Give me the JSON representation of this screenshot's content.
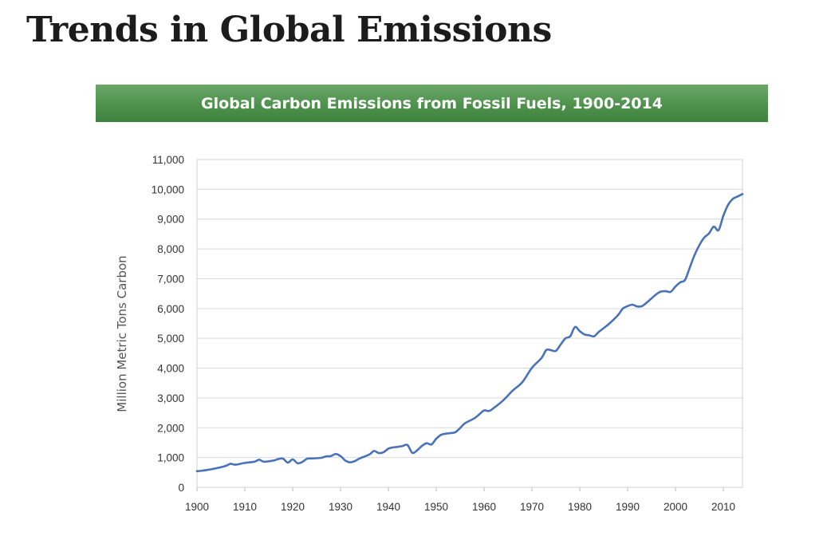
{
  "page": {
    "title": "Trends in Global Emissions"
  },
  "chart_data": {
    "type": "line",
    "title": "Global Carbon Emissions from Fossil Fuels, 1900-2014",
    "xlabel": "",
    "ylabel": "Million Metric Tons Carbon",
    "xlim": [
      1900,
      2014
    ],
    "ylim": [
      0,
      11000
    ],
    "x_ticks": [
      1900,
      1910,
      1920,
      1930,
      1940,
      1950,
      1960,
      1970,
      1980,
      1990,
      2000,
      2010
    ],
    "y_ticks": [
      0,
      1000,
      2000,
      3000,
      4000,
      5000,
      6000,
      7000,
      8000,
      9000,
      10000,
      11000
    ],
    "x_tick_labels": [
      "1900",
      "1910",
      "1920",
      "1930",
      "1940",
      "1950",
      "1960",
      "1970",
      "1980",
      "1990",
      "2000",
      "2010"
    ],
    "y_tick_labels": [
      "0",
      "1,000",
      "2,000",
      "3,000",
      "4,000",
      "5,000",
      "6,000",
      "7,000",
      "8,000",
      "9,000",
      "10,000",
      "11,000"
    ],
    "grid": true,
    "line_color": "#4a72b8",
    "header_color": "#4e914c",
    "series": [
      {
        "x": [
          1900,
          1902,
          1904,
          1906,
          1907,
          1908,
          1910,
          1912,
          1913,
          1914,
          1916,
          1917,
          1918,
          1919,
          1920,
          1921,
          1922,
          1923,
          1924,
          1926,
          1927,
          1928,
          1929,
          1930,
          1931,
          1932,
          1933,
          1934,
          1936,
          1937,
          1938,
          1939,
          1940,
          1941,
          1942,
          1943,
          1944,
          1945,
          1946,
          1947,
          1948,
          1949,
          1950,
          1951,
          1952,
          1953,
          1954,
          1955,
          1956,
          1958,
          1959,
          1960,
          1961,
          1962,
          1964,
          1966,
          1968,
          1970,
          1972,
          1973,
          1974,
          1975,
          1976,
          1977,
          1978,
          1979,
          1980,
          1981,
          1982,
          1983,
          1984,
          1986,
          1988,
          1989,
          1990,
          1991,
          1992,
          1993,
          1994,
          1996,
          1997,
          1998,
          1999,
          2000,
          2001,
          2002,
          2003,
          2004,
          2005,
          2006,
          2007,
          2008,
          2009,
          2010,
          2011,
          2012,
          2013,
          2014
        ],
        "values": [
          540,
          580,
          640,
          720,
          790,
          760,
          820,
          860,
          930,
          860,
          900,
          950,
          960,
          830,
          940,
          810,
          850,
          960,
          970,
          990,
          1040,
          1050,
          1120,
          1050,
          900,
          840,
          880,
          970,
          1100,
          1220,
          1150,
          1180,
          1300,
          1340,
          1360,
          1390,
          1420,
          1160,
          1240,
          1390,
          1480,
          1440,
          1630,
          1760,
          1800,
          1820,
          1850,
          1990,
          2150,
          2320,
          2450,
          2580,
          2560,
          2660,
          2920,
          3250,
          3530,
          4010,
          4340,
          4610,
          4600,
          4580,
          4790,
          5000,
          5070,
          5380,
          5240,
          5130,
          5100,
          5070,
          5220,
          5470,
          5780,
          6000,
          6080,
          6130,
          6070,
          6080,
          6200,
          6480,
          6570,
          6580,
          6560,
          6740,
          6880,
          6960,
          7380,
          7800,
          8130,
          8380,
          8520,
          8750,
          8630,
          9110,
          9480,
          9680,
          9760,
          9840
        ]
      }
    ]
  }
}
